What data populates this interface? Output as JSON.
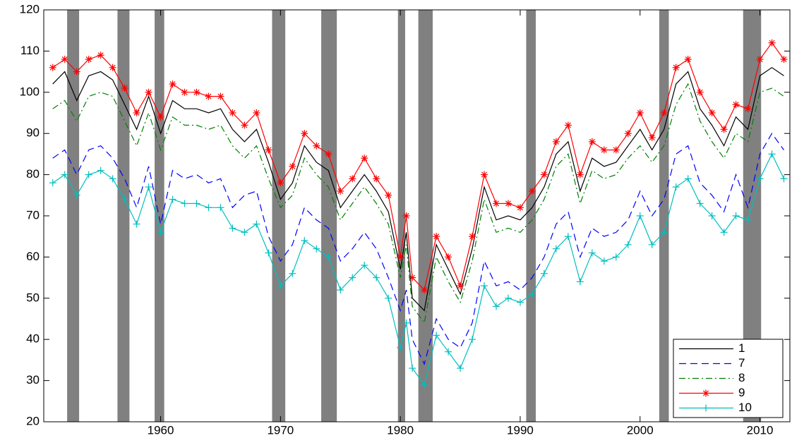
{
  "chart_data": {
    "type": "line",
    "x": [
      1951,
      1952,
      1953,
      1954,
      1955,
      1956,
      1957,
      1958,
      1959,
      1960,
      1961,
      1962,
      1963,
      1964,
      1965,
      1966,
      1967,
      1968,
      1969,
      1970,
      1971,
      1972,
      1973,
      1974,
      1975,
      1976,
      1977,
      1978,
      1979,
      1980,
      1980.5,
      1981,
      1982,
      1983,
      1984,
      1985,
      1986,
      1987,
      1988,
      1989,
      1990,
      1991,
      1992,
      1993,
      1994,
      1995,
      1996,
      1997,
      1998,
      1999,
      2000,
      2001,
      2002,
      2003,
      2004,
      2005,
      2006,
      2007,
      2008,
      2009,
      2010,
      2011,
      2012
    ],
    "series": [
      {
        "name": "1",
        "color": "#000000",
        "dash": "solid",
        "marker": "none",
        "values": [
          102,
          105,
          98,
          104,
          105,
          103,
          97,
          91,
          99,
          90,
          98,
          96,
          96,
          95,
          96,
          91,
          88,
          91,
          83,
          74,
          78,
          87,
          83,
          81,
          72,
          76,
          80,
          76,
          71,
          57,
          66,
          50,
          47,
          63,
          57,
          51,
          62,
          77,
          69,
          70,
          69,
          72,
          77,
          85,
          88,
          76,
          84,
          82,
          83,
          87,
          91,
          86,
          91,
          102,
          105,
          96,
          92,
          87,
          94,
          91,
          104,
          106,
          104
        ]
      },
      {
        "name": "7",
        "color": "#0000ff",
        "dash": "dashed",
        "marker": "none",
        "values": [
          84,
          86,
          80,
          86,
          87,
          84,
          79,
          72,
          82,
          68,
          81,
          79,
          80,
          78,
          79,
          72,
          75,
          76,
          65,
          59,
          63,
          72,
          69,
          67,
          59,
          62,
          66,
          62,
          55,
          47,
          52,
          40,
          34,
          45,
          40,
          38,
          44,
          59,
          53,
          54,
          52,
          55,
          60,
          68,
          71,
          60,
          67,
          65,
          66,
          69,
          76,
          70,
          74,
          85,
          87,
          78,
          75,
          71,
          80,
          72,
          85,
          90,
          86
        ]
      },
      {
        "name": "8",
        "color": "#008000",
        "dash": "dashdot",
        "marker": "none",
        "values": [
          96,
          98,
          93,
          99,
          100,
          99,
          93,
          87,
          95,
          86,
          94,
          92,
          92,
          91,
          92,
          87,
          84,
          87,
          79,
          72,
          75,
          84,
          80,
          77,
          69,
          73,
          77,
          73,
          68,
          55,
          63,
          48,
          44,
          60,
          54,
          49,
          59,
          74,
          66,
          67,
          66,
          69,
          74,
          82,
          85,
          73,
          81,
          79,
          80,
          84,
          87,
          83,
          87,
          97,
          102,
          93,
          88,
          84,
          90,
          88,
          100,
          101,
          99
        ]
      },
      {
        "name": "9",
        "color": "#ff0000",
        "dash": "solid",
        "marker": "asterisk",
        "values": [
          106,
          108,
          105,
          108,
          109,
          106,
          101,
          95,
          100,
          94,
          102,
          100,
          100,
          99,
          99,
          95,
          92,
          95,
          86,
          78,
          82,
          90,
          87,
          85,
          76,
          79,
          84,
          79,
          75,
          60,
          70,
          55,
          52,
          65,
          60,
          53,
          65,
          80,
          73,
          73,
          72,
          76,
          80,
          88,
          92,
          80,
          88,
          86,
          86,
          90,
          95,
          89,
          95,
          106,
          108,
          100,
          95,
          91,
          97,
          96,
          108,
          112,
          108
        ]
      },
      {
        "name": "10",
        "color": "#00bfbf",
        "dash": "solid",
        "marker": "plus",
        "values": [
          78,
          80,
          75,
          80,
          81,
          79,
          74,
          68,
          77,
          66,
          74,
          73,
          73,
          72,
          72,
          67,
          66,
          68,
          61,
          53,
          56,
          64,
          62,
          60,
          52,
          55,
          58,
          55,
          50,
          38,
          44,
          33,
          29,
          41,
          37,
          33,
          40,
          53,
          48,
          50,
          49,
          51,
          56,
          62,
          65,
          54,
          61,
          59,
          60,
          63,
          70,
          63,
          66,
          77,
          79,
          73,
          70,
          66,
          70,
          69,
          79,
          85,
          79
        ]
      }
    ],
    "shaded_periods": [
      [
        1952.2,
        1953.2
      ],
      [
        1956.4,
        1957.4
      ],
      [
        1959.5,
        1960.3
      ],
      [
        1969.3,
        1970.4
      ],
      [
        1973.4,
        1974.7
      ],
      [
        1979.8,
        1980.4
      ],
      [
        1981.5,
        1982.7
      ],
      [
        1990.5,
        1991.3
      ],
      [
        2001.6,
        2002.4
      ],
      [
        2008.6,
        2010.1
      ]
    ],
    "shade_color": "#808080",
    "xlim": [
      1950.25,
      2012.5
    ],
    "xticks": [
      1960,
      1970,
      1980,
      1990,
      2000,
      2010
    ],
    "ylim": [
      20,
      120
    ],
    "yticks": [
      20,
      30,
      40,
      50,
      60,
      70,
      80,
      90,
      100,
      110,
      120
    ],
    "grid": false,
    "legend": "lower right"
  }
}
